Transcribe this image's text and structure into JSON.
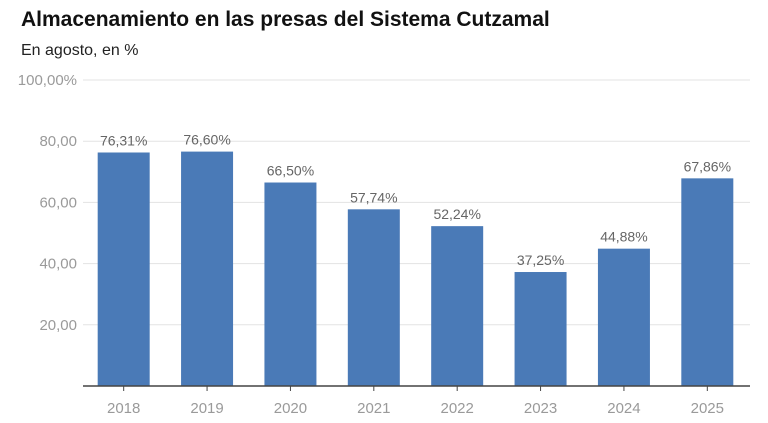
{
  "chart_data": {
    "type": "bar",
    "title": "Almacenamiento en las presas del Sistema Cutzamal",
    "subtitle": "En agosto, en %",
    "categories": [
      "2018",
      "2019",
      "2020",
      "2021",
      "2022",
      "2023",
      "2024",
      "2025"
    ],
    "values": [
      76.31,
      76.6,
      66.5,
      57.74,
      52.24,
      37.25,
      44.88,
      67.86
    ],
    "data_labels": [
      "76,31%",
      "76,60%",
      "66,50%",
      "57,74%",
      "52,24%",
      "37,25%",
      "44,88%",
      "67,86%"
    ],
    "y_ticks": [
      20,
      40,
      60,
      80,
      100
    ],
    "y_tick_labels": [
      "20,00",
      "40,00",
      "60,00",
      "80,00",
      "100,00%"
    ],
    "ylim": [
      0,
      100
    ],
    "grid": true,
    "bar_color": "#4a7ab7"
  }
}
